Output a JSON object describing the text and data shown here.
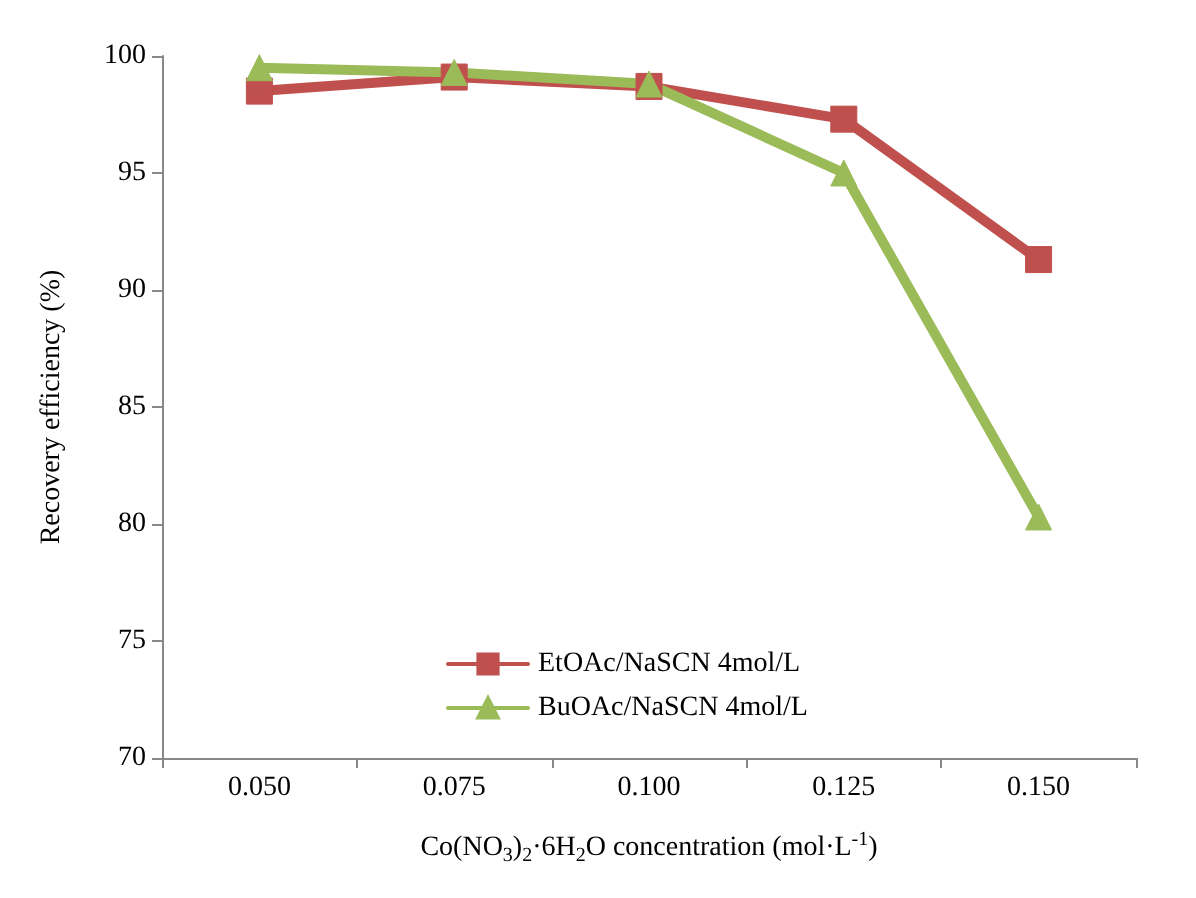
{
  "chart_data": {
    "type": "line",
    "xlabel": "Co(NO$_{3}$)$_{2}$·6H$_{2}$O concentration (mol·L$^{-1}$)",
    "ylabel": "Recovery efficiency (%)",
    "categories": [
      "0.050",
      "0.075",
      "0.100",
      "0.125",
      "0.150"
    ],
    "series": [
      {
        "name": "EtOAc/NaSCN 4mol/L",
        "color": "#c0504d",
        "marker": "square",
        "values": [
          98.5,
          99.1,
          98.7,
          97.3,
          91.3
        ]
      },
      {
        "name": "BuOAc/NaSCN 4mol/L",
        "color": "#9bbb59",
        "marker": "triangle",
        "values": [
          99.5,
          99.3,
          98.8,
          95.0,
          80.3
        ]
      }
    ],
    "ylim": [
      70,
      100
    ],
    "yticks": [
      70,
      75,
      80,
      85,
      90,
      95,
      100
    ],
    "grid": false,
    "legend": "bottom",
    "line_style": "solid"
  }
}
